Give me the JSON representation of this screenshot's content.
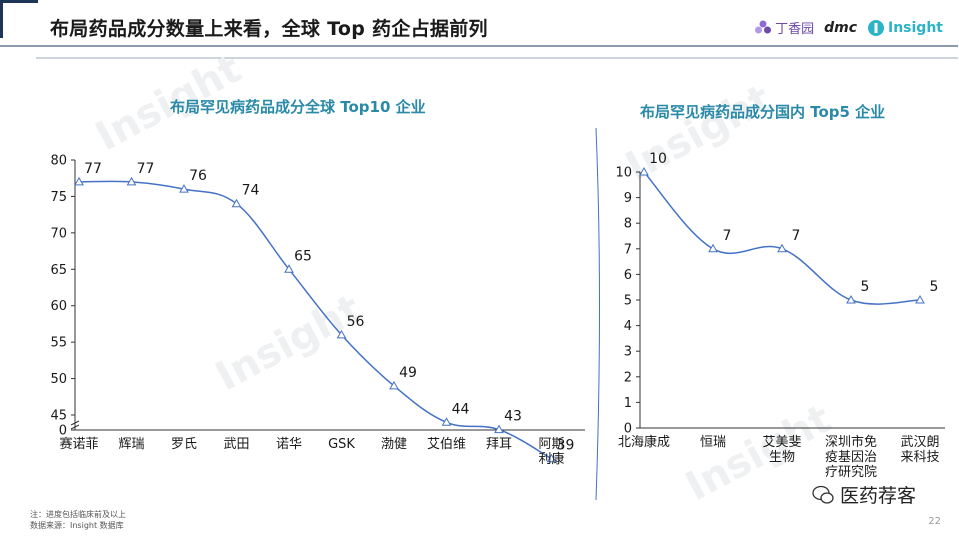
{
  "header": {
    "title": "布局药品成分数量上来看，全球 Top 药企占据前列",
    "logos": {
      "dxy": "丁香园",
      "dmc": "dmc",
      "insight": "Insight"
    }
  },
  "watermark": "Insight",
  "colors": {
    "line": "#4472c4",
    "title_accent": "#2a8aa8",
    "text": "#1a1a1a"
  },
  "chart_data": [
    {
      "type": "line",
      "title": "布局罕见病药品成分全球 Top10 企业",
      "categories": [
        "赛诺菲",
        "辉瑞",
        "罗氏",
        "武田",
        "诺华",
        "GSK",
        "渤健",
        "艾伯维",
        "拜耳",
        "阿斯\n利康"
      ],
      "values": [
        77,
        77,
        76,
        74,
        65,
        56,
        49,
        44,
        43,
        39
      ],
      "yticks": [
        0,
        45,
        50,
        55,
        60,
        65,
        70,
        75,
        80
      ],
      "ylim": [
        40,
        80
      ],
      "axis_break": true,
      "marker": "triangle",
      "smooth": true
    },
    {
      "type": "line",
      "title": "布局罕见病药品成分国内 Top5 企业",
      "categories": [
        "北海康成",
        "恒瑞",
        "艾美斐\n生物",
        "深圳市免\n疫基因治\n疗研究院",
        "武汉朗\n来科技"
      ],
      "values": [
        10,
        7,
        7,
        5,
        5
      ],
      "yticks": [
        0,
        1,
        2,
        3,
        4,
        5,
        6,
        7,
        8,
        9,
        10
      ],
      "ylim": [
        0,
        10
      ],
      "marker": "triangle",
      "smooth": true
    }
  ],
  "footer": {
    "note1": "注：进度包括临床前及以上",
    "note2": "数据来源：Insight 数据库",
    "wechat": "医药荐客",
    "page": "22"
  }
}
